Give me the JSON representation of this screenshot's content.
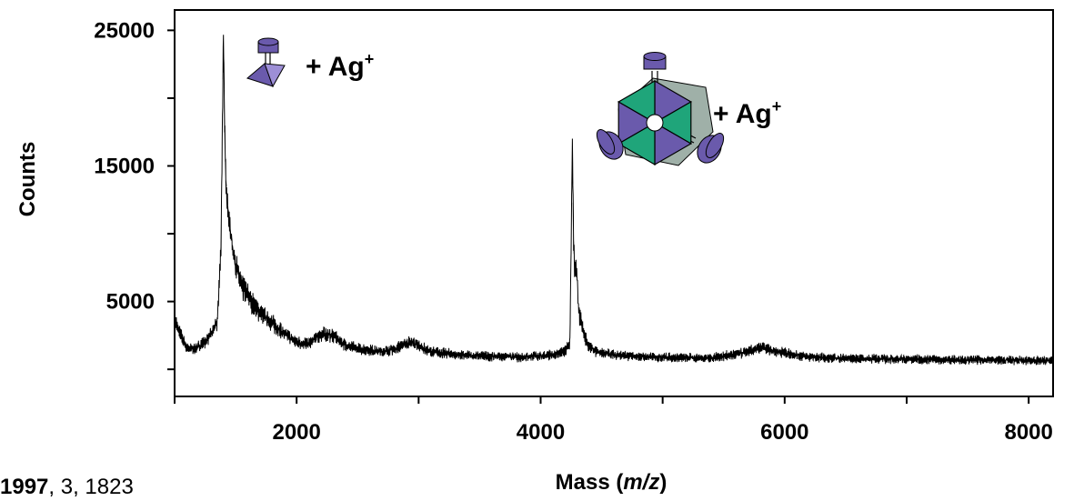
{
  "chart_data": {
    "type": "line",
    "title": "",
    "xlabel": "Mass (m/z)",
    "xlabel_prefix": "Mass (",
    "xlabel_italic": "m/z",
    "xlabel_suffix": ")",
    "ylabel": "Counts",
    "xlim": [
      1000,
      8200
    ],
    "ylim": [
      -2000,
      26500
    ],
    "x_ticks": [
      2000,
      4000,
      6000,
      8000
    ],
    "x_tick_labels": [
      "2000",
      "4000",
      "6000",
      "8000"
    ],
    "x_minor_ticks": [
      1000,
      3000,
      5000,
      7000
    ],
    "y_ticks": [
      5000,
      15000,
      25000
    ],
    "y_tick_labels": [
      "5000",
      "15000",
      "25000"
    ],
    "y_minor_ticks": [
      0,
      10000,
      20000
    ],
    "grid": false,
    "line_color": "#000000",
    "series": [
      {
        "x": [
          1000,
          1050,
          1100,
          1150,
          1200,
          1250,
          1300,
          1350,
          1380,
          1400,
          1410,
          1420,
          1440,
          1460,
          1480,
          1500,
          1550,
          1600,
          1650,
          1700,
          1800,
          1900,
          2000,
          2100,
          2200,
          2300,
          2400,
          2500,
          2600,
          2700,
          2800,
          2900,
          2950,
          3000,
          3100,
          3200,
          3300,
          3400,
          3500,
          3600,
          3700,
          3800,
          3900,
          4000,
          4100,
          4200,
          4240,
          4260,
          4270,
          4280,
          4290,
          4300,
          4310,
          4320,
          4340,
          4360,
          4380,
          4400,
          4450,
          4500,
          4600,
          4700,
          4800,
          4900,
          5000,
          5200,
          5400,
          5600,
          5700,
          5800,
          5900,
          6000,
          6200,
          6500,
          7000,
          7500,
          8000,
          8200
        ],
        "y": [
          3600,
          2500,
          1600,
          1500,
          1700,
          2000,
          2600,
          3500,
          9000,
          24500,
          18000,
          14000,
          11500,
          10000,
          8700,
          7800,
          6100,
          5500,
          4700,
          4200,
          3400,
          2600,
          2000,
          1900,
          2600,
          2500,
          1800,
          1500,
          1400,
          1300,
          1500,
          1900,
          2000,
          1700,
          1300,
          1200,
          1100,
          1000,
          1000,
          950,
          950,
          900,
          950,
          1000,
          1050,
          1300,
          2000,
          16500,
          9500,
          7000,
          8000,
          6500,
          4300,
          3900,
          3100,
          2400,
          2000,
          1700,
          1300,
          1200,
          1100,
          1000,
          950,
          900,
          900,
          850,
          850,
          1100,
          1300,
          1600,
          1400,
          1200,
          900,
          800,
          750,
          700,
          650,
          650
        ]
      }
    ],
    "annotations": [
      {
        "text": "+ Ag",
        "superscript": "+"
      },
      {
        "text": "+ Ag",
        "superscript": "+"
      }
    ]
  },
  "citation": {
    "year": "1997",
    "rest": ", 3, 1823",
    "volume": "3",
    "pages": "1823"
  },
  "colors": {
    "purple": "#6a5aac",
    "green": "#1fa57a",
    "gray": "#9fb0a8"
  }
}
